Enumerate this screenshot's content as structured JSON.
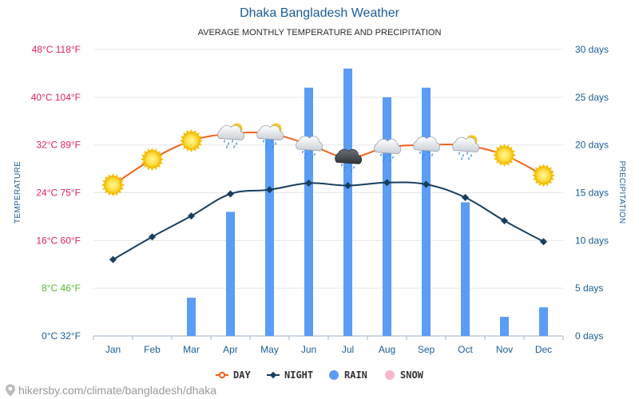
{
  "title": "Dhaka Bangladesh Weather",
  "subtitle": "AVERAGE MONTHLY TEMPERATURE AND PRECIPITATION",
  "footer": "hikersby.com/climate/bangladesh/dhaka",
  "colors": {
    "day": "#f2621f",
    "night": "#173f5f",
    "rain": "#5b9cf5",
    "snow": "#f6b8c9",
    "left_hot": "#e0245e",
    "left_mild": "#55b82a",
    "left_cold": "#1a5d96"
  },
  "chart_data": {
    "type": "bar+line",
    "categories": [
      "Jan",
      "Feb",
      "Mar",
      "Apr",
      "May",
      "Jun",
      "Jul",
      "Aug",
      "Sep",
      "Oct",
      "Nov",
      "Dec"
    ],
    "left_axis": {
      "title": "TEMPERATURE",
      "ylim": [
        0,
        48
      ],
      "ticks": [
        {
          "value": 0,
          "label": "0°C 32°F",
          "color": "#1a5d96"
        },
        {
          "value": 8,
          "label": "8°C 46°F",
          "color": "#55b82a"
        },
        {
          "value": 16,
          "label": "16°C 60°F",
          "color": "#e0245e"
        },
        {
          "value": 24,
          "label": "24°C 75°F",
          "color": "#e0245e"
        },
        {
          "value": 32,
          "label": "32°C 89°F",
          "color": "#e0245e"
        },
        {
          "value": 40,
          "label": "40°C 104°F",
          "color": "#e0245e"
        },
        {
          "value": 48,
          "label": "48°C 118°F",
          "color": "#e0245e"
        }
      ]
    },
    "right_axis": {
      "title": "PRECIPITATION",
      "ylim": [
        0,
        30
      ],
      "ticks": [
        {
          "value": 0,
          "label": "0 days"
        },
        {
          "value": 5,
          "label": "5 days"
        },
        {
          "value": 10,
          "label": "10 days"
        },
        {
          "value": 15,
          "label": "15 days"
        },
        {
          "value": 20,
          "label": "20 days"
        },
        {
          "value": 25,
          "label": "25 days"
        },
        {
          "value": 30,
          "label": "30 days"
        }
      ]
    },
    "series": [
      {
        "name": "DAY",
        "axis": "left",
        "kind": "line",
        "values": [
          25.3,
          29.6,
          32.7,
          33.9,
          33.9,
          32.1,
          29.9,
          31.6,
          32.0,
          31.9,
          30.3,
          26.9
        ]
      },
      {
        "name": "NIGHT",
        "axis": "left",
        "kind": "line",
        "values": [
          12.8,
          16.6,
          20.1,
          23.8,
          24.5,
          25.6,
          25.2,
          25.7,
          25.4,
          23.2,
          19.3,
          15.8
        ]
      },
      {
        "name": "RAIN",
        "axis": "right",
        "kind": "bar",
        "values": [
          0,
          0,
          4,
          13,
          21,
          26,
          28,
          25,
          26,
          14,
          2,
          3
        ]
      },
      {
        "name": "SNOW",
        "axis": "right",
        "kind": "bar",
        "values": [
          0,
          0,
          0,
          0,
          0,
          0,
          0,
          0,
          0,
          0,
          0,
          0
        ]
      }
    ],
    "weather_icons": [
      "sun",
      "sun",
      "sun",
      "sun-cloud-rain",
      "sun-cloud-rain",
      "cloud-rain",
      "storm",
      "cloud-rain",
      "cloud-rain",
      "sun-cloud-rain",
      "sun",
      "sun"
    ],
    "legend": [
      "DAY",
      "NIGHT",
      "RAIN",
      "SNOW"
    ]
  }
}
